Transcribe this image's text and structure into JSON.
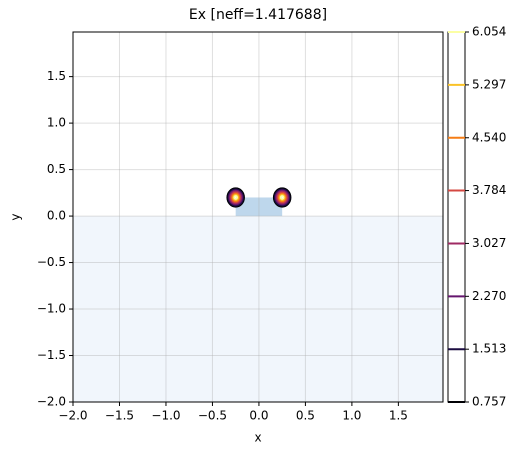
{
  "chart_data": {
    "type": "contour",
    "title": "Ex [neff=1.417688]",
    "x_label": "x",
    "y_label": "y",
    "xlim": [
      -2,
      1.98
    ],
    "ylim": [
      -2,
      1.98
    ],
    "xticks": [
      {
        "value": -2,
        "label": "−2.0"
      },
      {
        "value": -1.5,
        "label": "−1.5"
      },
      {
        "value": -1,
        "label": "−1.0"
      },
      {
        "value": -0.5,
        "label": "−0.5"
      },
      {
        "value": 0,
        "label": "0.0"
      },
      0.5,
      {
        "value": 1,
        "label": "1.0"
      },
      1.5
    ],
    "yticks": [
      {
        "value": -2,
        "label": "−2.0"
      },
      {
        "value": -1.5,
        "label": "−1.5"
      },
      {
        "value": -1,
        "label": "−1.0"
      },
      {
        "value": -0.5,
        "label": "−0.5"
      },
      {
        "value": 0,
        "label": "0.0"
      },
      0.5,
      {
        "value": 1,
        "label": "1.0"
      },
      1.5
    ],
    "grid": true,
    "structures": [
      {
        "x": [
          -2,
          1.98
        ],
        "y": [
          -2,
          0
        ],
        "color": "#f1f6fc"
      },
      {
        "x": [
          -0.25,
          0.25
        ],
        "y": [
          0,
          0.2
        ],
        "color": "#bed7ec"
      }
    ],
    "hotspots": [
      {
        "x": -0.25,
        "y": 0.2
      },
      {
        "x": 0.25,
        "y": 0.2
      }
    ],
    "clim": [
      0.757,
      6.054
    ],
    "cticks": [
      {
        "value": 0.757,
        "label": "0.757"
      },
      1.513,
      {
        "value": 2.27,
        "label": "2.270"
      },
      3.027,
      3.784,
      {
        "value": 4.54,
        "label": "4.540"
      },
      5.297,
      6.054
    ],
    "level_colors": [
      "#000004",
      "#1b0c41",
      "#65156e",
      "#9f2a63",
      "#d44842",
      "#f57d15",
      "#fac228",
      "#fcffa4"
    ]
  }
}
